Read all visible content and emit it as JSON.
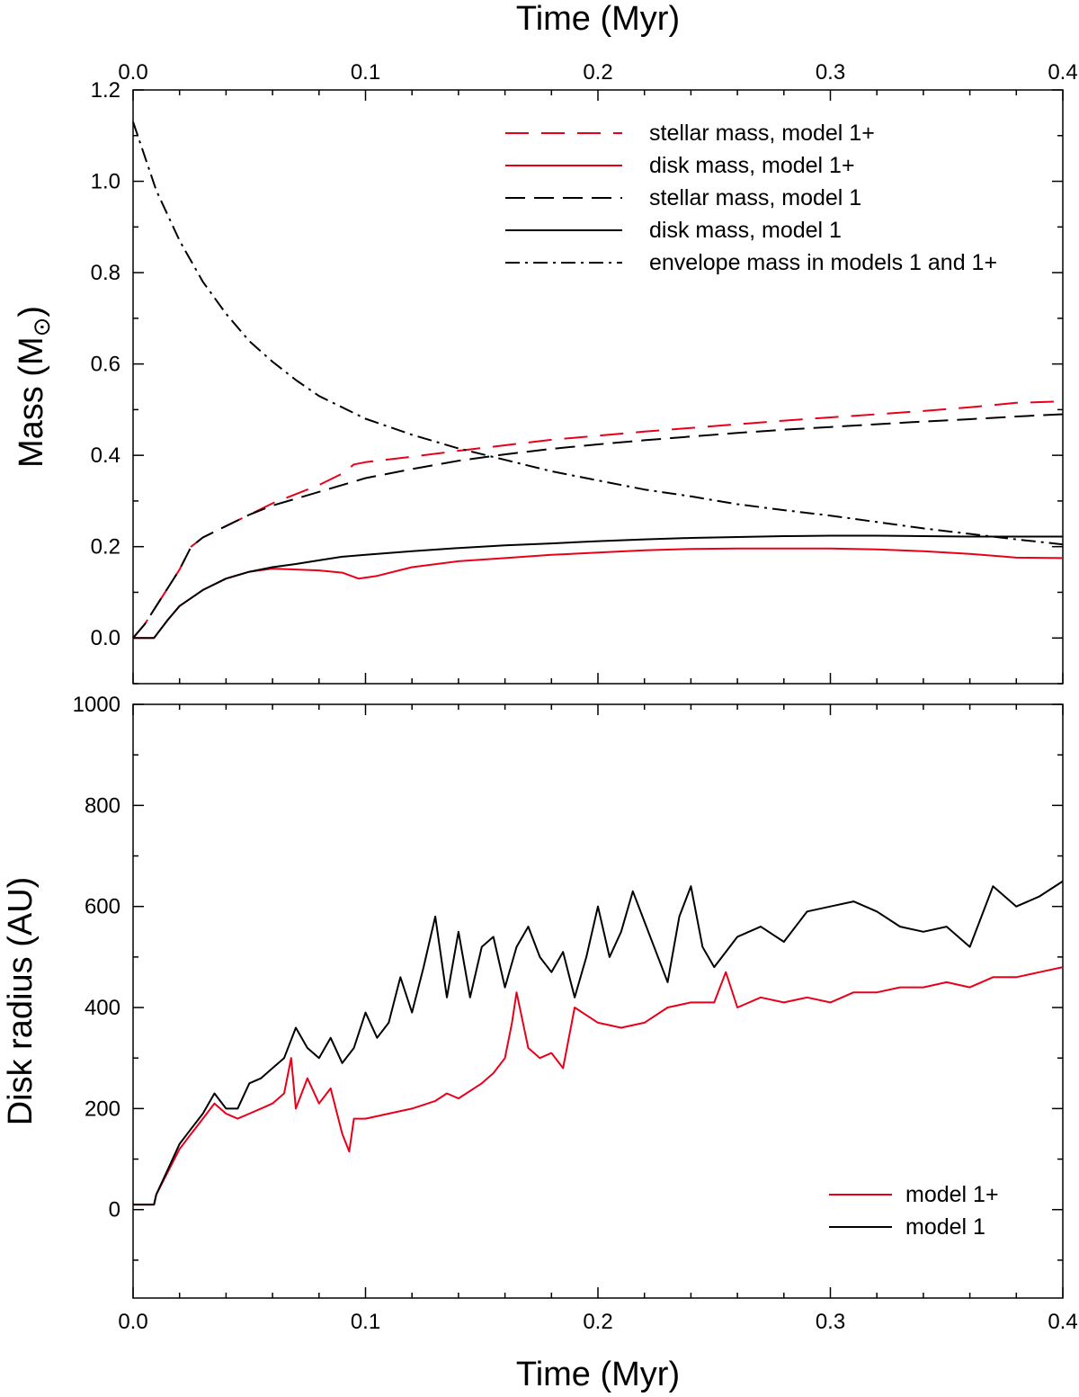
{
  "chart_data": [
    {
      "type": "line",
      "panel": "top",
      "xlabel": "",
      "x2label": "Time (Myr)",
      "ylabel": "Mass (M",
      "ylabel_symbol": "⊙",
      "ylabel_close": ")",
      "xlim": [
        0.0,
        0.4
      ],
      "ylim": [
        -0.1,
        1.2
      ],
      "xticks": [
        "0.0",
        "0.1",
        "0.2",
        "0.3",
        "0.4"
      ],
      "yticks": [
        "0.0",
        "0.2",
        "0.4",
        "0.6",
        "0.8",
        "1.0",
        "1.2"
      ],
      "grid": false,
      "legend_position": "top-right",
      "series": [
        {
          "name": "stellar mass, model 1+",
          "color": "#e8001a",
          "dash": "long-dash",
          "x": [
            0.0,
            0.005,
            0.01,
            0.015,
            0.02,
            0.025,
            0.03,
            0.04,
            0.05,
            0.06,
            0.07,
            0.08,
            0.09,
            0.095,
            0.1,
            0.12,
            0.14,
            0.16,
            0.18,
            0.2,
            0.22,
            0.24,
            0.26,
            0.28,
            0.3,
            0.32,
            0.34,
            0.36,
            0.38,
            0.4
          ],
          "y": [
            0.0,
            0.03,
            0.07,
            0.11,
            0.15,
            0.2,
            0.22,
            0.245,
            0.27,
            0.295,
            0.315,
            0.335,
            0.36,
            0.38,
            0.385,
            0.397,
            0.41,
            0.422,
            0.434,
            0.443,
            0.452,
            0.46,
            0.468,
            0.476,
            0.483,
            0.49,
            0.497,
            0.505,
            0.515,
            0.518
          ]
        },
        {
          "name": "disk mass, model 1+",
          "color": "#e8001a",
          "dash": "solid",
          "x": [
            0.0,
            0.005,
            0.009,
            0.015,
            0.02,
            0.03,
            0.04,
            0.05,
            0.06,
            0.07,
            0.08,
            0.09,
            0.097,
            0.105,
            0.12,
            0.14,
            0.16,
            0.18,
            0.2,
            0.22,
            0.24,
            0.26,
            0.28,
            0.3,
            0.32,
            0.34,
            0.36,
            0.37,
            0.38,
            0.4
          ],
          "y": [
            0.0,
            0.0,
            0.0,
            0.04,
            0.07,
            0.105,
            0.13,
            0.145,
            0.152,
            0.15,
            0.148,
            0.143,
            0.13,
            0.136,
            0.155,
            0.168,
            0.175,
            0.182,
            0.187,
            0.192,
            0.195,
            0.196,
            0.196,
            0.196,
            0.194,
            0.19,
            0.184,
            0.18,
            0.176,
            0.175
          ]
        },
        {
          "name": "stellar mass,  model 1",
          "color": "#000000",
          "dash": "dash",
          "x": [
            0.0,
            0.005,
            0.01,
            0.015,
            0.02,
            0.025,
            0.03,
            0.04,
            0.05,
            0.06,
            0.07,
            0.08,
            0.09,
            0.1,
            0.12,
            0.14,
            0.16,
            0.18,
            0.2,
            0.22,
            0.24,
            0.26,
            0.28,
            0.3,
            0.32,
            0.34,
            0.36,
            0.38,
            0.4
          ],
          "y": [
            0.0,
            0.03,
            0.07,
            0.11,
            0.15,
            0.2,
            0.22,
            0.245,
            0.27,
            0.29,
            0.305,
            0.32,
            0.335,
            0.35,
            0.37,
            0.388,
            0.402,
            0.414,
            0.424,
            0.433,
            0.441,
            0.449,
            0.456,
            0.462,
            0.468,
            0.474,
            0.479,
            0.485,
            0.49
          ]
        },
        {
          "name": "disk mass, model 1",
          "color": "#000000",
          "dash": "solid",
          "x": [
            0.0,
            0.005,
            0.009,
            0.015,
            0.02,
            0.03,
            0.04,
            0.05,
            0.06,
            0.07,
            0.08,
            0.09,
            0.1,
            0.12,
            0.14,
            0.16,
            0.18,
            0.2,
            0.22,
            0.24,
            0.26,
            0.28,
            0.3,
            0.32,
            0.34,
            0.36,
            0.38,
            0.4
          ],
          "y": [
            0.0,
            0.0,
            0.0,
            0.04,
            0.07,
            0.105,
            0.13,
            0.145,
            0.155,
            0.162,
            0.17,
            0.178,
            0.182,
            0.19,
            0.197,
            0.203,
            0.207,
            0.212,
            0.216,
            0.219,
            0.221,
            0.223,
            0.224,
            0.224,
            0.223,
            0.222,
            0.222,
            0.222
          ]
        },
        {
          "name": "envelope mass in models 1 and 1+",
          "color": "#000000",
          "dash": "dashdot",
          "x": [
            0.0,
            0.01,
            0.02,
            0.03,
            0.04,
            0.05,
            0.06,
            0.07,
            0.08,
            0.1,
            0.12,
            0.14,
            0.16,
            0.18,
            0.2,
            0.22,
            0.24,
            0.26,
            0.28,
            0.3,
            0.32,
            0.34,
            0.36,
            0.38,
            0.4
          ],
          "y": [
            1.13,
            0.98,
            0.87,
            0.78,
            0.71,
            0.65,
            0.605,
            0.565,
            0.53,
            0.48,
            0.445,
            0.415,
            0.39,
            0.365,
            0.345,
            0.325,
            0.31,
            0.293,
            0.28,
            0.268,
            0.254,
            0.24,
            0.228,
            0.216,
            0.205
          ]
        }
      ]
    },
    {
      "type": "line",
      "panel": "bottom",
      "xlabel": "Time (Myr)",
      "ylabel": "Disk radius (AU)",
      "xlim": [
        0.0,
        0.4
      ],
      "ylim": [
        -175,
        1000
      ],
      "xticks": [
        "0.0",
        "0.1",
        "0.2",
        "0.3",
        "0.4"
      ],
      "yticks": [
        "0",
        "200",
        "400",
        "600",
        "800",
        "1000"
      ],
      "grid": false,
      "legend_position": "bottom-right",
      "series": [
        {
          "name": "model 1+",
          "color": "#e8001a",
          "dash": "solid",
          "x": [
            0.0,
            0.009,
            0.01,
            0.015,
            0.02,
            0.025,
            0.03,
            0.035,
            0.04,
            0.045,
            0.05,
            0.055,
            0.06,
            0.065,
            0.068,
            0.07,
            0.075,
            0.08,
            0.085,
            0.09,
            0.093,
            0.095,
            0.1,
            0.11,
            0.12,
            0.13,
            0.135,
            0.14,
            0.15,
            0.155,
            0.16,
            0.163,
            0.165,
            0.17,
            0.175,
            0.18,
            0.185,
            0.19,
            0.2,
            0.21,
            0.22,
            0.23,
            0.24,
            0.25,
            0.255,
            0.26,
            0.27,
            0.28,
            0.29,
            0.3,
            0.31,
            0.32,
            0.33,
            0.34,
            0.35,
            0.36,
            0.37,
            0.38,
            0.39,
            0.4
          ],
          "y": [
            10,
            10,
            30,
            75,
            120,
            150,
            180,
            210,
            190,
            180,
            190,
            200,
            210,
            230,
            300,
            200,
            260,
            210,
            240,
            150,
            115,
            180,
            180,
            190,
            200,
            215,
            230,
            220,
            250,
            270,
            300,
            370,
            430,
            320,
            300,
            310,
            280,
            400,
            370,
            360,
            370,
            400,
            410,
            410,
            470,
            400,
            420,
            410,
            420,
            410,
            430,
            430,
            440,
            440,
            450,
            440,
            460,
            460,
            470,
            480
          ]
        },
        {
          "name": "model 1",
          "color": "#000000",
          "dash": "solid",
          "x": [
            0.0,
            0.009,
            0.01,
            0.015,
            0.02,
            0.025,
            0.03,
            0.035,
            0.04,
            0.045,
            0.05,
            0.055,
            0.06,
            0.065,
            0.07,
            0.075,
            0.08,
            0.085,
            0.09,
            0.095,
            0.1,
            0.105,
            0.11,
            0.115,
            0.12,
            0.125,
            0.13,
            0.135,
            0.14,
            0.145,
            0.15,
            0.155,
            0.16,
            0.165,
            0.17,
            0.175,
            0.18,
            0.185,
            0.19,
            0.195,
            0.2,
            0.205,
            0.21,
            0.215,
            0.22,
            0.225,
            0.23,
            0.235,
            0.24,
            0.245,
            0.25,
            0.26,
            0.27,
            0.28,
            0.29,
            0.3,
            0.31,
            0.32,
            0.33,
            0.34,
            0.35,
            0.36,
            0.37,
            0.38,
            0.39,
            0.4
          ],
          "y": [
            10,
            10,
            30,
            80,
            130,
            160,
            190,
            230,
            200,
            200,
            250,
            260,
            280,
            300,
            360,
            320,
            300,
            340,
            290,
            320,
            390,
            340,
            370,
            460,
            390,
            480,
            580,
            420,
            550,
            420,
            520,
            540,
            440,
            520,
            560,
            500,
            470,
            510,
            420,
            500,
            600,
            500,
            550,
            630,
            570,
            510,
            450,
            580,
            640,
            520,
            480,
            540,
            560,
            530,
            590,
            600,
            610,
            590,
            560,
            550,
            560,
            520,
            640,
            600,
            620,
            650
          ]
        }
      ]
    }
  ]
}
